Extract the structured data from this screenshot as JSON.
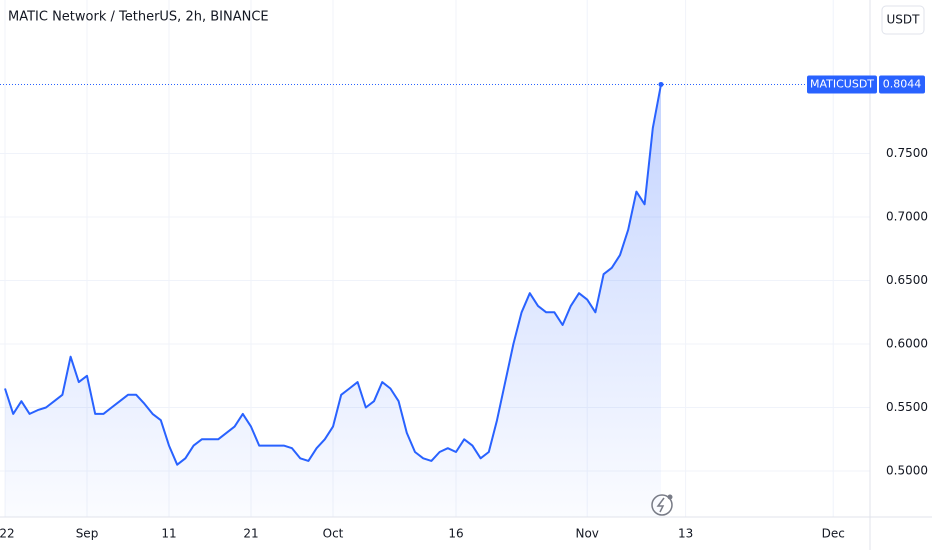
{
  "chart_data": {
    "type": "area",
    "title": "MATIC Network / TetherUS, 2h, BINANCE",
    "currency_button": "USDT",
    "series": [
      {
        "name": "MATICUSDT",
        "color": "#2962ff",
        "values": [
          0.565,
          0.545,
          0.555,
          0.545,
          0.548,
          0.55,
          0.555,
          0.56,
          0.59,
          0.57,
          0.575,
          0.545,
          0.545,
          0.55,
          0.555,
          0.56,
          0.56,
          0.553,
          0.545,
          0.54,
          0.52,
          0.505,
          0.51,
          0.52,
          0.525,
          0.525,
          0.525,
          0.53,
          0.535,
          0.545,
          0.535,
          0.52,
          0.52,
          0.52,
          0.52,
          0.518,
          0.51,
          0.508,
          0.518,
          0.525,
          0.535,
          0.56,
          0.565,
          0.57,
          0.55,
          0.555,
          0.57,
          0.565,
          0.555,
          0.53,
          0.515,
          0.51,
          0.508,
          0.515,
          0.518,
          0.515,
          0.525,
          0.52,
          0.51,
          0.515,
          0.54,
          0.57,
          0.6,
          0.625,
          0.64,
          0.63,
          0.625,
          0.625,
          0.615,
          0.63,
          0.64,
          0.635,
          0.625,
          0.655,
          0.66,
          0.67,
          0.69,
          0.72,
          0.71,
          0.77,
          0.8044,
          null,
          null,
          null,
          null,
          null,
          null,
          null,
          null,
          null,
          null,
          null,
          null,
          null,
          null,
          null,
          null,
          null,
          null,
          null,
          null,
          null,
          null,
          null,
          null
        ]
      }
    ],
    "categories": [
      "22",
      null,
      null,
      null,
      null,
      null,
      null,
      null,
      null,
      null,
      "Sep",
      null,
      null,
      null,
      null,
      null,
      null,
      null,
      null,
      null,
      "11",
      null,
      null,
      null,
      null,
      null,
      null,
      null,
      null,
      null,
      "21",
      null,
      null,
      null,
      null,
      null,
      null,
      null,
      null,
      null,
      "Oct",
      null,
      null,
      null,
      null,
      null,
      null,
      null,
      null,
      null,
      null,
      null,
      null,
      null,
      null,
      "16",
      null,
      null,
      null,
      null,
      null,
      null,
      null,
      null,
      null,
      null,
      null,
      null,
      null,
      null,
      null,
      "Nov",
      null,
      null,
      null,
      null,
      null,
      null,
      null,
      null,
      null,
      null,
      null,
      "13",
      null,
      null,
      null,
      null,
      null,
      null,
      null,
      null,
      null,
      null,
      null,
      null,
      null,
      null,
      null,
      null,
      null,
      "Dec",
      null,
      null,
      null
    ],
    "ylim": [
      0.4638,
      0.8709
    ],
    "yticks": [
      {
        "value": 0.5,
        "label": "0.5000"
      },
      {
        "value": 0.55,
        "label": "0.5500"
      },
      {
        "value": 0.6,
        "label": "0.6000"
      },
      {
        "value": 0.65,
        "label": "0.6500"
      },
      {
        "value": 0.7,
        "label": "0.7000"
      },
      {
        "value": 0.75,
        "label": "0.7500"
      }
    ],
    "grid": true
  }
}
